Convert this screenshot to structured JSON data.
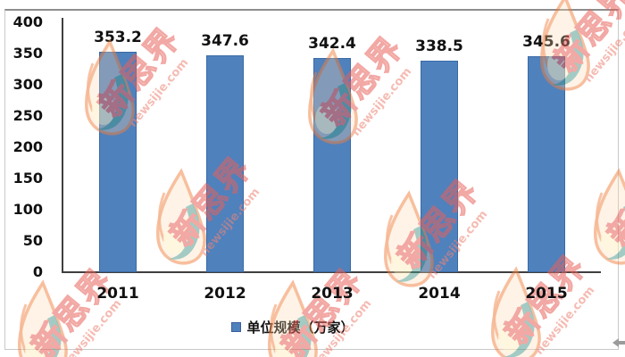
{
  "chart_data": {
    "type": "bar",
    "title": "",
    "xlabel": "",
    "ylabel": "",
    "categories": [
      "2011",
      "2012",
      "2013",
      "2014",
      "2015"
    ],
    "values": [
      353.2,
      347.6,
      342.4,
      338.5,
      345.6
    ],
    "value_labels": [
      "353.2",
      "347.6",
      "342.4",
      "338.5",
      "345.6"
    ],
    "ylim": [
      0,
      400
    ],
    "ytick_step": 50,
    "ytick_labels": [
      "400",
      "350",
      "300",
      "250",
      "200",
      "150",
      "100",
      "50",
      "0"
    ],
    "grid": false,
    "legend_position": "bottom",
    "legend_label": "单位规模（万家）",
    "colors": {
      "bar_fill": "#4f81bd",
      "bar_border": "#3a6aa6",
      "axis": "#3f3f3f",
      "text": "#111111",
      "frame_border": "#c9c9c9",
      "frame_border_top": "#8d8d8d"
    }
  },
  "watermark": {
    "brand_text": "新思界",
    "domain_text": "newsijie.com",
    "text_color": "#e8625a",
    "domain_color": "#ee8576",
    "flame_outline_color": "#ef7f3e",
    "flame_fill_color": "#fbd8ad",
    "flame_teal_color": "#2f8f86",
    "flame_glow_color": "#fdf0c0"
  },
  "cursor_artifact": {
    "shape": "left-arrow",
    "color": "#9b9b9b"
  }
}
